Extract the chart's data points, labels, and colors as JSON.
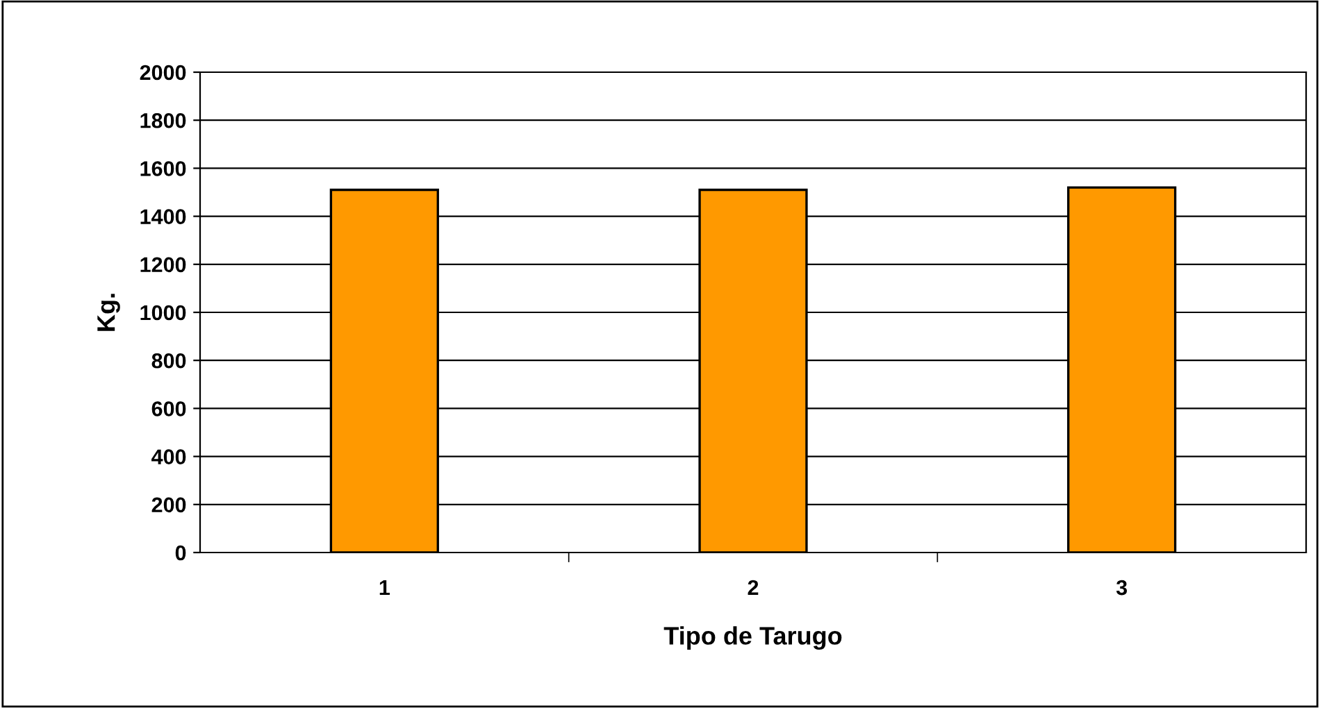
{
  "chart_data": {
    "type": "bar",
    "xlabel": "Tipo de Tarugo",
    "ylabel": "Kg.",
    "categories": [
      "1",
      "2",
      "3"
    ],
    "values": [
      1510,
      1510,
      1520
    ],
    "color": "#ff9900",
    "ylim": [
      0,
      2000
    ],
    "yticks": [
      0,
      200,
      400,
      600,
      800,
      1000,
      1200,
      1400,
      1600,
      1800,
      2000
    ],
    "grid": "y",
    "legend": false
  }
}
